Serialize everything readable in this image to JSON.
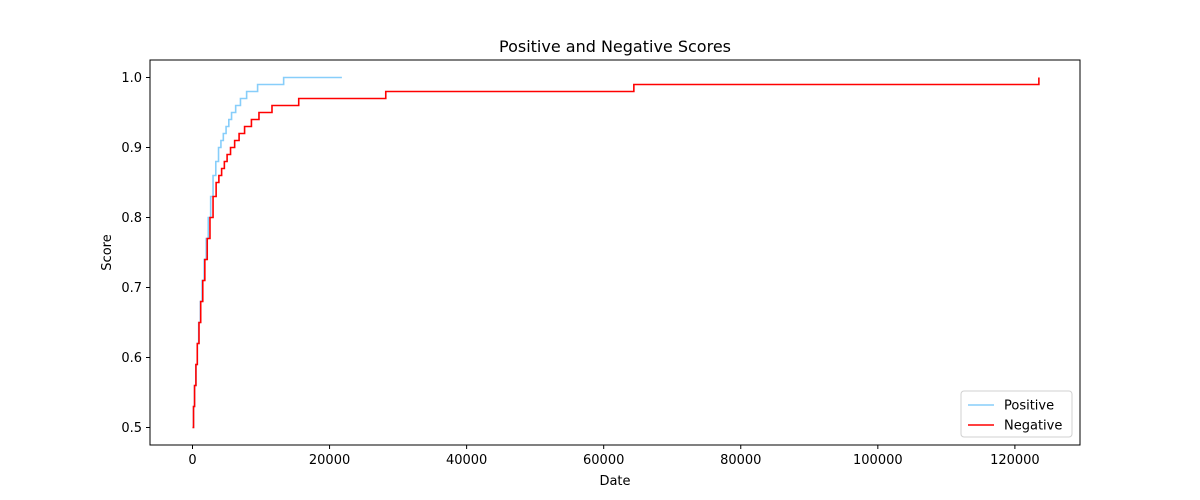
{
  "chart_data": {
    "type": "line",
    "title": "Positive and Negative Scores",
    "xlabel": "Date",
    "ylabel": "Score",
    "xlim": [
      -6200,
      129500
    ],
    "ylim": [
      0.475,
      1.025
    ],
    "xticks": [
      0,
      20000,
      40000,
      60000,
      80000,
      100000,
      120000
    ],
    "yticks": [
      0.5,
      0.6,
      0.7,
      0.8,
      0.9,
      1.0
    ],
    "xtick_labels": [
      "0",
      "20000",
      "40000",
      "60000",
      "80000",
      "100000",
      "120000"
    ],
    "ytick_labels": [
      "0.5",
      "0.6",
      "0.7",
      "0.8",
      "0.9",
      "1.0"
    ],
    "grid": false,
    "legend_position": "lower-right",
    "step": true,
    "series": [
      {
        "name": "Positive",
        "color": "#87CEFA",
        "points": [
          [
            0,
            0.5
          ],
          [
            150,
            0.53
          ],
          [
            300,
            0.56
          ],
          [
            500,
            0.59
          ],
          [
            700,
            0.62
          ],
          [
            900,
            0.65
          ],
          [
            1150,
            0.68
          ],
          [
            1400,
            0.71
          ],
          [
            1700,
            0.74
          ],
          [
            2000,
            0.77
          ],
          [
            2300,
            0.8
          ],
          [
            2650,
            0.83
          ],
          [
            3000,
            0.86
          ],
          [
            3400,
            0.88
          ],
          [
            3800,
            0.9
          ],
          [
            4150,
            0.91
          ],
          [
            4500,
            0.92
          ],
          [
            4900,
            0.93
          ],
          [
            5300,
            0.94
          ],
          [
            5700,
            0.95
          ],
          [
            6300,
            0.96
          ],
          [
            7000,
            0.97
          ],
          [
            7900,
            0.98
          ],
          [
            9500,
            0.99
          ],
          [
            13300,
            1.0
          ],
          [
            21800,
            1.0
          ]
        ]
      },
      {
        "name": "Negative",
        "color": "#FF0000",
        "points": [
          [
            0,
            0.5
          ],
          [
            150,
            0.53
          ],
          [
            300,
            0.56
          ],
          [
            500,
            0.59
          ],
          [
            700,
            0.62
          ],
          [
            950,
            0.65
          ],
          [
            1200,
            0.68
          ],
          [
            1500,
            0.71
          ],
          [
            1800,
            0.74
          ],
          [
            2150,
            0.77
          ],
          [
            2550,
            0.8
          ],
          [
            3000,
            0.83
          ],
          [
            3450,
            0.85
          ],
          [
            3850,
            0.86
          ],
          [
            4250,
            0.87
          ],
          [
            4650,
            0.88
          ],
          [
            5050,
            0.89
          ],
          [
            5550,
            0.9
          ],
          [
            6150,
            0.91
          ],
          [
            6800,
            0.92
          ],
          [
            7600,
            0.93
          ],
          [
            8600,
            0.94
          ],
          [
            9700,
            0.95
          ],
          [
            11600,
            0.96
          ],
          [
            15500,
            0.97
          ],
          [
            28200,
            0.98
          ],
          [
            64400,
            0.99
          ],
          [
            123500,
            1.0
          ]
        ]
      }
    ]
  }
}
